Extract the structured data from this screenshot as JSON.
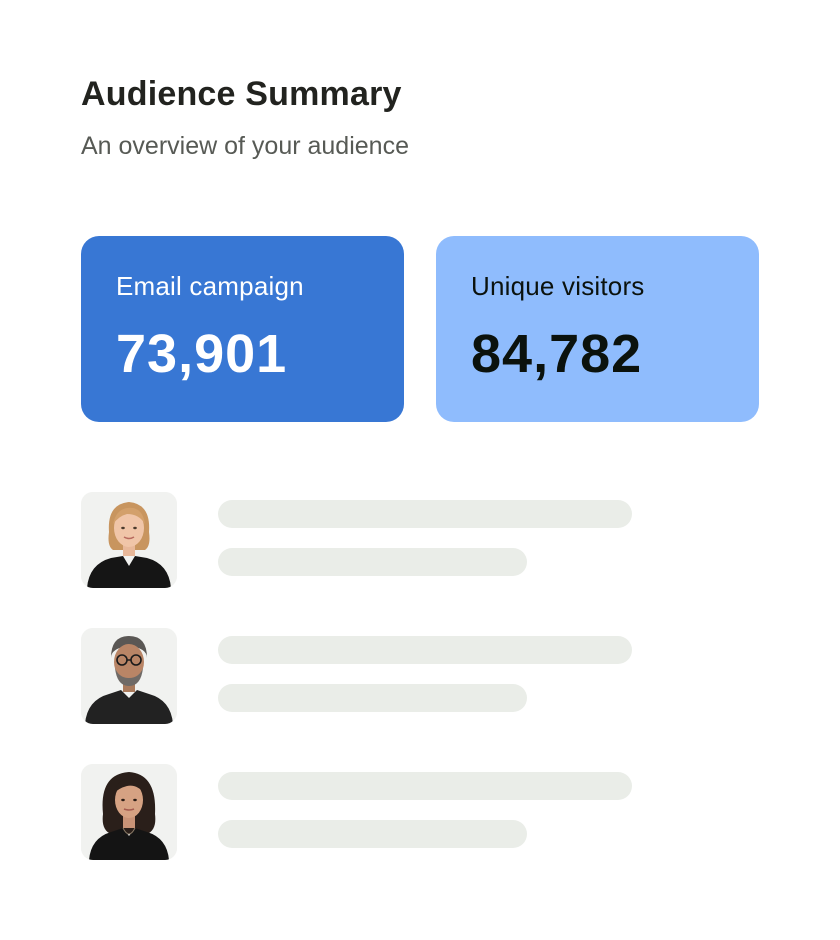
{
  "header": {
    "title": "Audience Summary",
    "subtitle": "An overview of your audience"
  },
  "cards": [
    {
      "label": "Email campaign",
      "value": "73,901",
      "color": "#3877d4"
    },
    {
      "label": "Unique visitors",
      "value": "84,782",
      "color": "#8fbcfd"
    }
  ],
  "audience": [
    {
      "avatar_icon": "woman-blonde-avatar-icon"
    },
    {
      "avatar_icon": "man-glasses-avatar-icon"
    },
    {
      "avatar_icon": "woman-dark-hair-avatar-icon"
    }
  ],
  "colors": {
    "placeholder_bar": "#eaede8",
    "avatar_background": "#f1f2f0"
  }
}
